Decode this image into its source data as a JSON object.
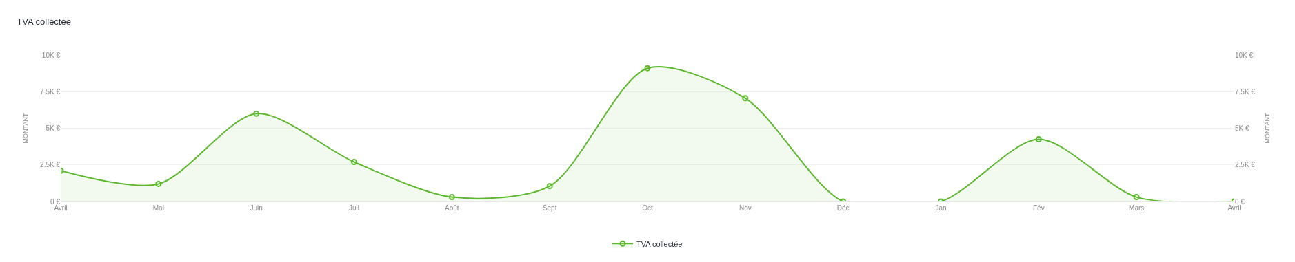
{
  "chart_data": {
    "type": "area",
    "title": "TVA collectée",
    "ylabel": "MONTANT",
    "y2label": "MONTANT",
    "categories": [
      "Avril",
      "Mai",
      "Juin",
      "Juil",
      "Août",
      "Sept",
      "Oct",
      "Nov",
      "Déc",
      "Jan",
      "Fév",
      "Mars",
      "Avril"
    ],
    "series": [
      {
        "name": "TVA collectée",
        "color": "#5cb82c",
        "values": [
          2100,
          1200,
          6000,
          2700,
          300,
          1050,
          9100,
          7050,
          0,
          0,
          4250,
          300,
          0
        ]
      }
    ],
    "ylim": [
      0,
      10000
    ],
    "yticks": [
      {
        "value": 0,
        "label": "0 €"
      },
      {
        "value": 2500,
        "label": "2.5K €"
      },
      {
        "value": 5000,
        "label": "5K €"
      },
      {
        "value": 7500,
        "label": "7.5K €"
      },
      {
        "value": 10000,
        "label": "10K €"
      }
    ],
    "y2lim": [
      0,
      10000
    ],
    "y2ticks": [
      {
        "value": 0,
        "label": "0 €"
      },
      {
        "value": 2500,
        "label": "2.5K €"
      },
      {
        "value": 5000,
        "label": "5K €"
      },
      {
        "value": 7500,
        "label": "7.5K €"
      },
      {
        "value": 10000,
        "label": "10K €"
      }
    ],
    "grid": "y",
    "legend": "bottom",
    "marker": "circle",
    "line_style": "solid"
  }
}
